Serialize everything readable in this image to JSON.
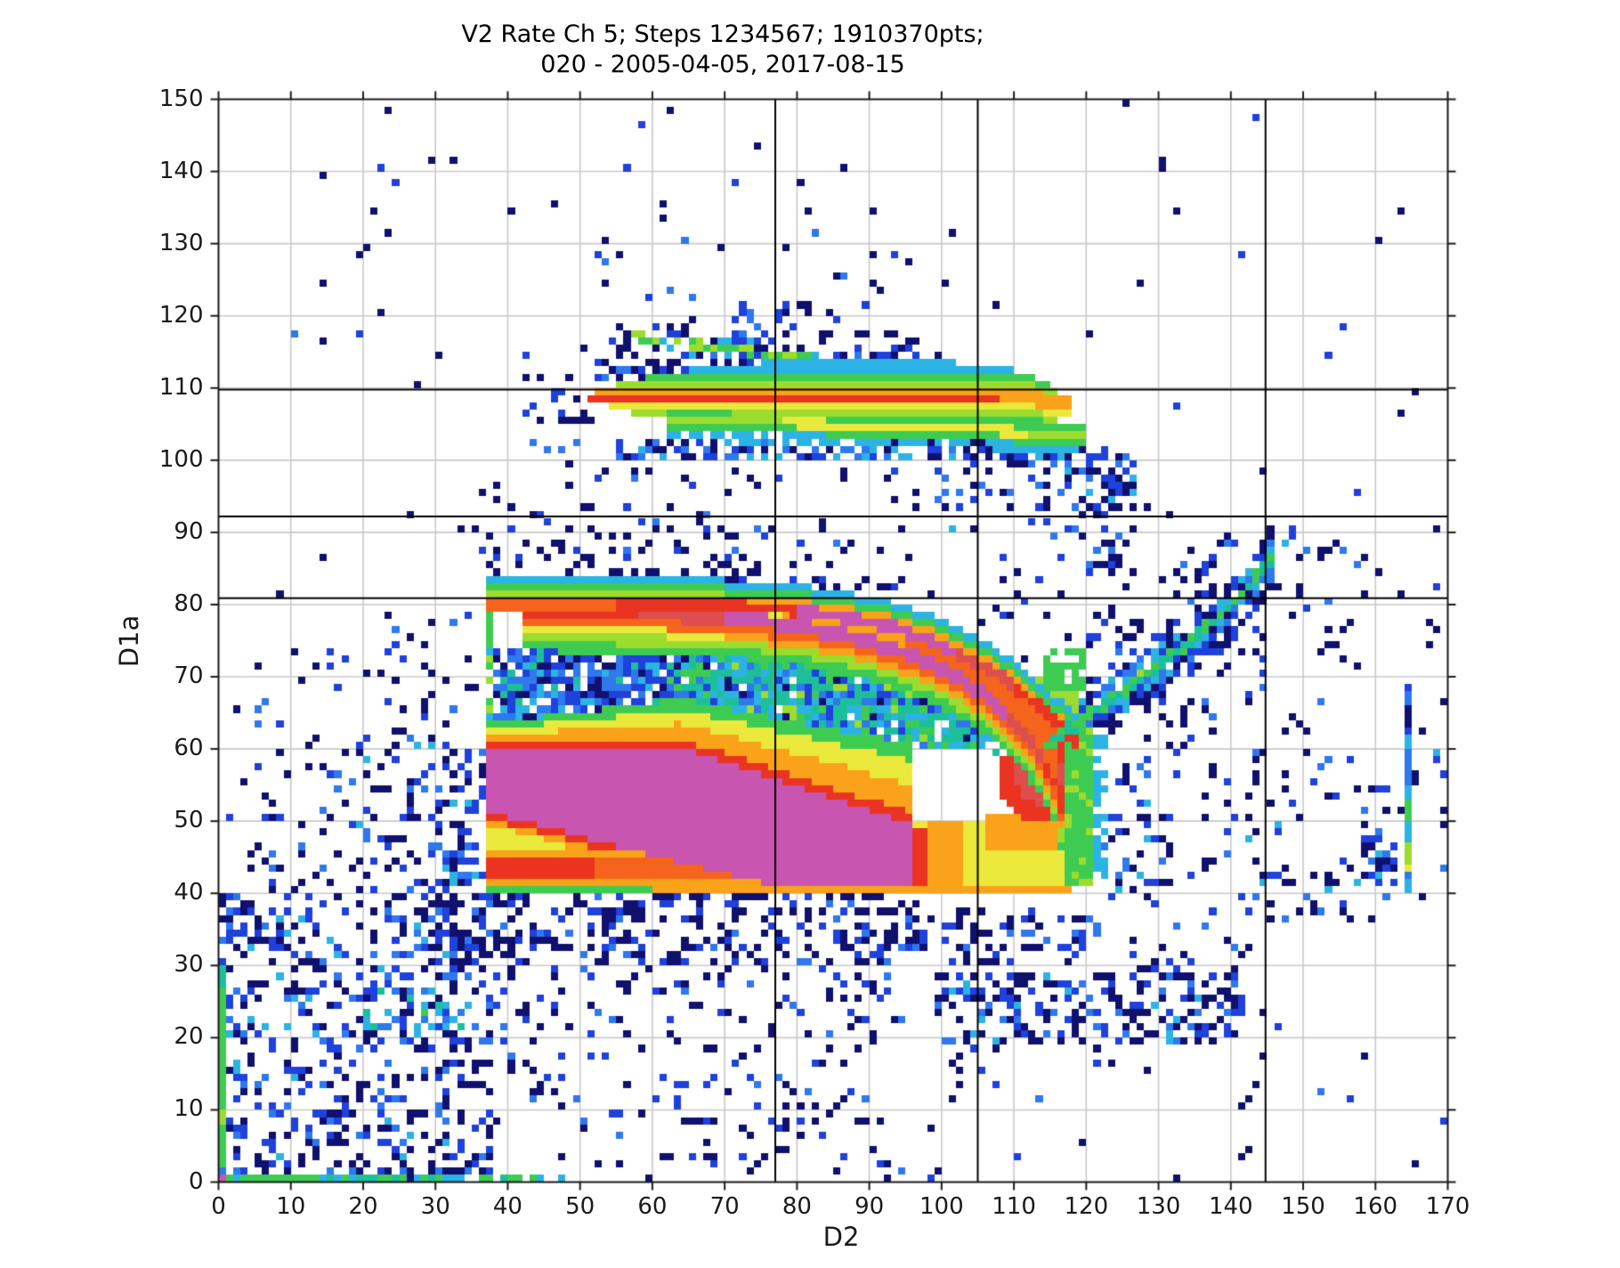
{
  "title": {
    "line1": "V2 Rate Ch 5; Steps 1234567; 1910370pts;",
    "line2": "020 - 2005-04-05, 2017-08-15"
  },
  "axes": {
    "xlabel": "D2",
    "ylabel": "D1a",
    "xlim": [
      0,
      170
    ],
    "ylim": [
      0,
      150
    ],
    "xticks": [
      0,
      10,
      20,
      30,
      40,
      50,
      60,
      70,
      80,
      90,
      100,
      110,
      120,
      130,
      140,
      150,
      160,
      170
    ],
    "yticks": [
      0,
      10,
      20,
      30,
      40,
      50,
      60,
      70,
      80,
      90,
      100,
      110,
      120,
      130,
      140,
      150
    ],
    "grid_step": 10,
    "grid_color": "#c9c9c9",
    "spine_color": "#1a1a1a",
    "background": "#ffffff"
  },
  "chart_data": {
    "type": "heatmap",
    "title": "V2 Rate Ch 5; Steps 1234567; 1910370pts; 020 - 2005-04-05, 2017-08-15",
    "xlabel": "D2",
    "ylabel": "D1a",
    "xlim": [
      0,
      170
    ],
    "ylim": [
      0,
      150
    ],
    "bin_size": 1,
    "legend": "none",
    "grid": true,
    "ref_lines": {
      "vertical_x": [
        77.0,
        105.0,
        144.8
      ],
      "horizontal_y": [
        80.9,
        92.2,
        109.8
      ],
      "color": "#000000",
      "width": 2
    },
    "palette": [
      "#ffffff",
      "#10106e",
      "#1f41dc",
      "#2f78ee",
      "#2cb3e4",
      "#1cbf9a",
      "#3ecb52",
      "#9bdc2f",
      "#eae93b",
      "#f9a21a",
      "#f5641c",
      "#ea3421",
      "#dd4e4e",
      "#c855b0"
    ],
    "palette_names": [
      "white",
      "navy",
      "blue",
      "lightblue",
      "cyan",
      "teal",
      "green",
      "yellowgreen",
      "yellow",
      "orange",
      "redorange",
      "red",
      "crimson",
      "magenta"
    ],
    "weight_presets": {
      "wNavy": {
        "1": 0.62,
        "2": 0.28,
        "3": 0.1
      },
      "wBlue": {
        "1": 0.45,
        "2": 0.33,
        "3": 0.14,
        "4": 0.08
      },
      "wMixC": {
        "1": 0.3,
        "2": 0.3,
        "3": 0.2,
        "4": 0.2
      },
      "wTeal": {
        "4": 0.35,
        "5": 0.3,
        "6": 0.2,
        "3": 0.15
      },
      "wHoleL": {
        "2": 0.3,
        "3": 0.25,
        "1": 0.2,
        "4": 0.18,
        "5": 0.07
      },
      "wHoleR": {
        "5": 0.28,
        "4": 0.24,
        "6": 0.14,
        "3": 0.14,
        "2": 0.1,
        "1": 0.05,
        "7": 0.05
      },
      "wArmH": {
        "3": 0.3,
        "4": 0.3,
        "2": 0.25,
        "1": 0.15
      },
      "wGreenCol": {
        "6": 0.55,
        "4": 0.25,
        "7": 0.2
      },
      "wEdge": {
        "6": 0.5,
        "5": 0.3,
        "4": 0.2
      }
    },
    "structures": {
      "inner_arc": {
        "path": [
          [
            42,
            79.0
          ],
          [
            52,
            78.8
          ],
          [
            62,
            78.5
          ],
          [
            72,
            78.0
          ],
          [
            80,
            77.1
          ],
          [
            88,
            75.5
          ],
          [
            95,
            73.3
          ],
          [
            101,
            70.6
          ],
          [
            106,
            67.4
          ],
          [
            110,
            63.9
          ],
          [
            113,
            60.2
          ],
          [
            115.5,
            55.5
          ],
          [
            116.8,
            50.5
          ]
        ],
        "core_levels": [
          [
            58,
            11
          ],
          [
            70,
            12
          ],
          [
            109,
            13
          ],
          [
            114,
            12
          ],
          [
            999,
            11
          ]
        ]
      },
      "outer_arc": {
        "path": [
          [
            37.5,
            80.3
          ],
          [
            55,
            80.2
          ],
          [
            70,
            79.9
          ],
          [
            80,
            79.2
          ],
          [
            87,
            78.2
          ],
          [
            94,
            76.6
          ],
          [
            100,
            74.4
          ],
          [
            105,
            71.9
          ],
          [
            109,
            69.4
          ],
          [
            113,
            66.3
          ],
          [
            116,
            63.4
          ],
          [
            119,
            60.5
          ]
        ],
        "core_levels": [
          [
            55,
            10
          ],
          [
            80,
            11
          ],
          [
            102,
            13
          ],
          [
            110,
            12
          ],
          [
            999,
            11
          ]
        ]
      },
      "blob": {
        "x0": 37.5,
        "x1": 96,
        "top_flat_until": 64,
        "top_left": 60,
        "top_right": 49.5,
        "bottom_left": 51,
        "bottom_slope": 0.26,
        "bottom_min": 41,
        "wedge_red_streak_y": [
          42.4,
          44.7
        ],
        "wedge_orange_rows": [
          [
            41,
            42.4
          ],
          [
            44.7,
            45.9
          ]
        ],
        "wedge_yellow_top": 45.9,
        "bottom_edge_orange": [
          60,
          118,
          40,
          41
        ],
        "bottom_edge_green": [
          37.5,
          60,
          39.8,
          41
        ]
      },
      "knob": {
        "cx": 113.5,
        "cy": 56,
        "rx": 6,
        "ry": 6,
        "core_rx": 3.2,
        "core_ry": 4,
        "yellow_base": [
          96,
          119.5,
          41,
          50
        ],
        "red_col": [
          96,
          98,
          41,
          49.5
        ],
        "orange_col": [
          98,
          103,
          41,
          50
        ],
        "orange_band": [
          106,
          119.5,
          46,
          51
        ],
        "green_col": [
          117.5,
          121.5,
          41.5,
          63.5
        ],
        "cyan_fringe": [
          121.5,
          123.2,
          42,
          62
        ]
      },
      "flag": {
        "upper_path": [
          [
            52,
            108.8
          ],
          [
            105,
            108.8
          ],
          [
            110,
            108.6
          ],
          [
            114,
            108.0
          ],
          [
            118,
            107.2
          ]
        ],
        "halfwidth": [
          [
            51.5,
            0.5
          ],
          [
            55,
            1.8
          ],
          [
            60,
            3.0
          ],
          [
            68,
            4.2
          ],
          [
            78,
            4.8
          ],
          [
            100,
            4.8
          ],
          [
            108,
            4.3
          ],
          [
            113,
            3.2
          ],
          [
            116,
            2.2
          ],
          [
            118.5,
            0.8
          ]
        ],
        "lower_path": [
          [
            62,
            105.2
          ],
          [
            80,
            105.0
          ],
          [
            95,
            104.6
          ],
          [
            105,
            104.2
          ],
          [
            112,
            103.8
          ],
          [
            120,
            103.2
          ]
        ],
        "diag_streak": [
          [
            57,
            117.2
          ],
          [
            84,
            113.6
          ]
        ],
        "tail": [
          [
            109,
            103.5
          ],
          [
            127,
            95.5
          ]
        ]
      },
      "right_arm": {
        "path": [
          [
            114.5,
            60.5
          ],
          [
            122,
            65.8
          ],
          [
            130,
            71.5
          ],
          [
            138,
            78
          ],
          [
            143,
            83
          ],
          [
            146.5,
            87.3
          ]
        ]
      },
      "right_stripe": {
        "x0": 163.8,
        "x1": 165.0,
        "segments": [
          [
            40.5,
            43.3,
            4
          ],
          [
            43.3,
            45.3,
            8
          ],
          [
            45.3,
            46.6,
            7
          ],
          [
            46.6,
            50,
            4
          ],
          [
            50,
            52.6,
            6
          ],
          [
            52.6,
            55,
            5
          ],
          [
            55,
            58,
            3
          ],
          [
            58,
            62,
            4
          ],
          [
            62,
            63.6,
            2
          ],
          [
            63.6,
            66.2,
            1
          ],
          [
            66.2,
            68.6,
            3
          ]
        ],
        "cluster": [
          159.5,
          163.5,
          41,
          50
        ]
      },
      "edge_lines": {
        "origin_cell": [
          0,
          0,
          13
        ],
        "bottom_solid_green": [
          1,
          12
        ],
        "bottom_dash_to": 42,
        "bottom_sparse_to": 50,
        "left_solid_green": [
          0,
          27.5
        ],
        "left_ygreen_seg": [
          8.5,
          10
        ],
        "left_fade_to": 30,
        "blue_cell": [
          0,
          1.5
        ]
      },
      "scatter_regions": [
        [
          0,
          14,
          0,
          16,
          0.34,
          "wBlue"
        ],
        [
          14,
          28,
          0,
          16,
          0.3,
          "wBlue"
        ],
        [
          0,
          28,
          16,
          40,
          0.28,
          "wBlue"
        ],
        [
          28,
          38,
          0,
          40,
          0.33,
          "wBlue"
        ],
        [
          20,
          35,
          20,
          27,
          0.22,
          "wTeal"
        ],
        [
          18,
          37,
          40,
          62,
          0.22,
          "wBlue"
        ],
        [
          29,
          36,
          42,
          55,
          0.18,
          "wMixC"
        ],
        [
          4,
          18,
          40,
          58,
          0.1,
          "wNavy"
        ],
        [
          20,
          37,
          62,
          79,
          0.13,
          "wNavy"
        ],
        [
          8,
          20,
          58,
          76,
          0.06,
          "wNavy"
        ],
        [
          0,
          8,
          40,
          80,
          0.03,
          "wNavy"
        ],
        [
          28,
          98,
          30,
          39.8,
          0.36,
          "wNavy"
        ],
        [
          30,
          96,
          22,
          30,
          0.16,
          "wNavy"
        ],
        [
          34,
          92,
          8,
          22,
          0.11,
          "wNavy"
        ],
        [
          40,
          82,
          2,
          8,
          0.08,
          "wNavy"
        ],
        [
          2,
          38,
          0,
          2.2,
          0.25,
          "wNavy"
        ],
        [
          99,
          143.5,
          19.5,
          29.5,
          0.42,
          "wBlue"
        ],
        [
          96,
          121,
          30,
          38.5,
          0.3,
          "wNavy"
        ],
        [
          121,
          143,
          29,
          36,
          0.13,
          "wNavy"
        ],
        [
          143,
          151,
          20,
          28,
          0.06,
          "wNavy"
        ],
        [
          37.5,
          96,
          82.5,
          91,
          0.2,
          "wNavy"
        ],
        [
          50,
          100,
          91.5,
          99.5,
          0.07,
          "wNavy"
        ],
        [
          100,
          127,
          90,
          102.5,
          0.28,
          "wBlue"
        ],
        [
          108,
          126,
          84,
          90,
          0.18,
          "wNavy"
        ],
        [
          95,
          122,
          72,
          84,
          0.06,
          "wNavy"
        ],
        [
          120,
          145,
          60,
          90,
          0.14,
          "wNavy"
        ],
        [
          120,
          162,
          36,
          60,
          0.12,
          "wBlue"
        ],
        [
          145,
          161,
          60,
          90,
          0.07,
          "wNavy"
        ],
        [
          152,
          170,
          36,
          60,
          0.05,
          "wNavy"
        ],
        [
          162,
          170,
          60,
          95,
          0.04,
          "wNavy"
        ],
        [
          42,
          52,
          99,
          112,
          0.09,
          "wNavy"
        ],
        [
          30,
          52,
          86,
          99,
          0.05,
          "wNavy"
        ],
        [
          10,
          60,
          112,
          150,
          0.012,
          "wNavy"
        ],
        [
          60,
          105,
          115,
          135,
          0.025,
          "wNavy"
        ],
        [
          55,
          95,
          135,
          150,
          0.008,
          "wNavy"
        ],
        [
          125,
          170,
          95,
          150,
          0.006,
          "wNavy"
        ],
        [
          145,
          170,
          0,
          20,
          0.015,
          "wNavy"
        ],
        [
          82,
          100,
          0,
          8,
          0.05,
          "wNavy"
        ],
        [
          100,
          145,
          0,
          15,
          0.02,
          "wNavy"
        ],
        [
          100,
          130,
          15,
          19.5,
          0.08,
          "wNavy"
        ],
        [
          52,
          100,
          111.5,
          115,
          0.45,
          "wNavy"
        ],
        [
          54,
          98,
          115,
          118.5,
          0.28,
          "wNavy"
        ],
        [
          56,
          96,
          118.5,
          122,
          0.14,
          "wNavy"
        ],
        [
          52,
          120,
          100.5,
          102.6,
          0.5,
          "wMixC"
        ],
        [
          160,
          166,
          50,
          62,
          0.1,
          "wNavy"
        ]
      ],
      "sparse_dots": [
        [
          23.8,
          148,
          1
        ],
        [
          32.8,
          141,
          1
        ],
        [
          62,
          148,
          1
        ],
        [
          46.9,
          135,
          1
        ],
        [
          53.8,
          130,
          1
        ],
        [
          19.7,
          128,
          1
        ],
        [
          53.8,
          124.9,
          1
        ],
        [
          14.9,
          124,
          1
        ],
        [
          22.8,
          120,
          1
        ],
        [
          55,
          118,
          1
        ],
        [
          54.9,
          112.5,
          1
        ],
        [
          42.7,
          111,
          1
        ],
        [
          27.7,
          110.3,
          1
        ],
        [
          74,
          143,
          1
        ],
        [
          78,
          129,
          1
        ],
        [
          85,
          125,
          1
        ],
        [
          95,
          127,
          1
        ],
        [
          100.5,
          124,
          1
        ],
        [
          107,
          121,
          1
        ],
        [
          91,
          123,
          1
        ],
        [
          120,
          117,
          1
        ],
        [
          132,
          134,
          1
        ],
        [
          160,
          130.5,
          1
        ],
        [
          163,
          106,
          1
        ],
        [
          8.9,
          81.3,
          1
        ],
        [
          14.8,
          86,
          1
        ],
        [
          26.7,
          92,
          1
        ],
        [
          44.1,
          0.5,
          1
        ],
        [
          59.7,
          0.5,
          1
        ],
        [
          73.6,
          1,
          1
        ],
        [
          75.5,
          3,
          1
        ],
        [
          78.3,
          4.5,
          1
        ],
        [
          98.9,
          0.5,
          2
        ],
        [
          132.7,
          0.5,
          1
        ],
        [
          144.8,
          23.5,
          1
        ],
        [
          144,
          17.8,
          1
        ],
        [
          150.5,
          87,
          3
        ],
        [
          152,
          86,
          1
        ],
        [
          148,
          90,
          2
        ],
        [
          128,
          93,
          1
        ],
        [
          131,
          92.5,
          1
        ],
        [
          168.7,
          59,
          4
        ],
        [
          168.7,
          58,
          2
        ],
        [
          166,
          39,
          1
        ],
        [
          165.6,
          2.2,
          1
        ],
        [
          147.5,
          88,
          4
        ],
        [
          148.5,
          89,
          2
        ]
      ]
    }
  }
}
